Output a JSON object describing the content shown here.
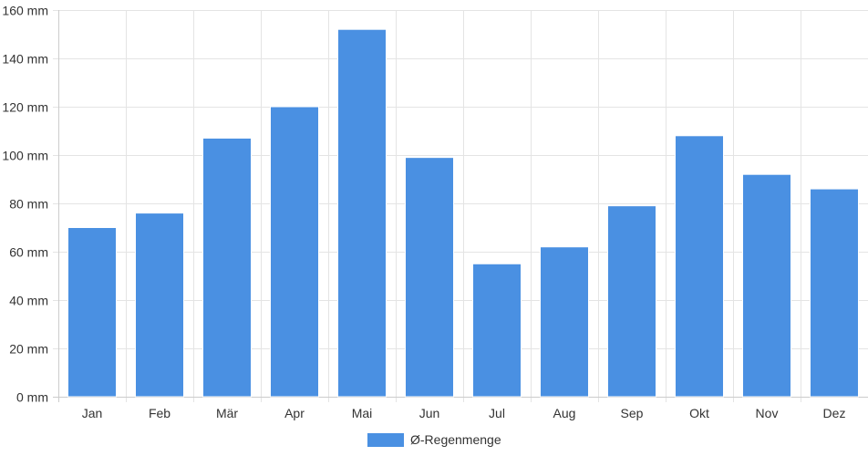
{
  "chart_data": {
    "type": "bar",
    "categories": [
      "Jan",
      "Feb",
      "Mär",
      "Apr",
      "Mai",
      "Jun",
      "Jul",
      "Aug",
      "Sep",
      "Okt",
      "Nov",
      "Dez"
    ],
    "series": [
      {
        "name": "Ø-Regenmenge",
        "values": [
          70,
          76,
          107,
          120,
          152,
          99,
          55,
          62,
          79,
          108,
          92,
          86
        ],
        "color": "#4a90e2"
      }
    ],
    "ylim": [
      0,
      160
    ],
    "y_ticks": [
      "0 mm",
      "20 mm",
      "40 mm",
      "60 mm",
      "80 mm",
      "100 mm",
      "120 mm",
      "140 mm",
      "160 mm"
    ],
    "y_unit": "mm",
    "grid": true,
    "legend_position": "bottom"
  }
}
